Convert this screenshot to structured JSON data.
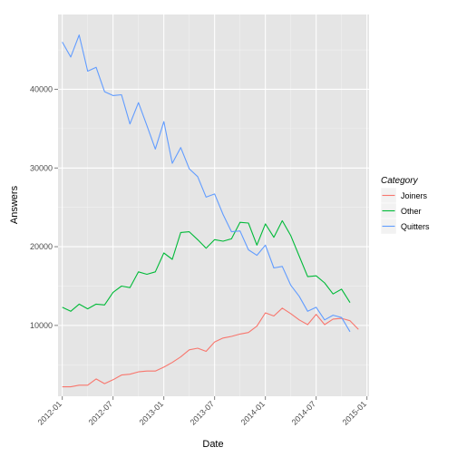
{
  "chart_data": {
    "type": "line",
    "xlabel": "Date",
    "ylabel": "Answers",
    "x_ticks": [
      "2012-01",
      "2012-07",
      "2013-01",
      "2013-07",
      "2014-01",
      "2014-07",
      "2015-01"
    ],
    "y_ticks": [
      10000,
      20000,
      30000,
      40000
    ],
    "y_tick_labels": [
      "10000",
      "20000",
      "30000",
      "40000"
    ],
    "xlim": [
      "2011-12",
      "2015-01"
    ],
    "ylim": [
      1000,
      49500
    ],
    "grid": true,
    "legend_title": "Category",
    "legend_position": "right",
    "dates": [
      "2012-01",
      "2012-02",
      "2012-03",
      "2012-04",
      "2012-05",
      "2012-06",
      "2012-07",
      "2012-08",
      "2012-09",
      "2012-10",
      "2012-11",
      "2012-12",
      "2013-01",
      "2013-02",
      "2013-03",
      "2013-04",
      "2013-05",
      "2013-06",
      "2013-07",
      "2013-08",
      "2013-09",
      "2013-10",
      "2013-11",
      "2013-12",
      "2014-01",
      "2014-02",
      "2014-03",
      "2014-04",
      "2014-05",
      "2014-06",
      "2014-07",
      "2014-08",
      "2014-09",
      "2014-10",
      "2014-11",
      "2014-12"
    ],
    "series": [
      {
        "name": "Joiners",
        "color": "#F8766D",
        "values": [
          2200,
          2200,
          2400,
          2400,
          3200,
          2600,
          3100,
          3700,
          3800,
          4100,
          4200,
          4200,
          4700,
          5300,
          6000,
          6900,
          7100,
          6700,
          7900,
          8400,
          8600,
          8900,
          9100,
          9900,
          11600,
          11200,
          12200,
          11500,
          10700,
          10100,
          11400,
          10100,
          10800,
          10900,
          10600,
          9500
        ]
      },
      {
        "name": "Other",
        "color": "#00BA38",
        "values": [
          12300,
          11800,
          12700,
          12100,
          12700,
          12600,
          14200,
          15000,
          14800,
          16800,
          16500,
          16800,
          19200,
          18400,
          21800,
          21900,
          20900,
          19800,
          20900,
          20700,
          21000,
          23100,
          23000,
          20200,
          22900,
          21200,
          23300,
          21400,
          18800,
          16200,
          16300,
          15400,
          14000,
          14600,
          12900,
          null
        ]
      },
      {
        "name": "Quitters",
        "color": "#619CFF",
        "values": [
          46000,
          44100,
          46900,
          42300,
          42800,
          39700,
          39200,
          39300,
          35600,
          38300,
          35400,
          32400,
          35900,
          30600,
          32600,
          29900,
          28900,
          26300,
          26700,
          24100,
          21900,
          22000,
          19600,
          18900,
          20200,
          17300,
          17500,
          15100,
          13700,
          11800,
          12300,
          10700,
          11300,
          11000,
          9200,
          null
        ]
      }
    ]
  }
}
